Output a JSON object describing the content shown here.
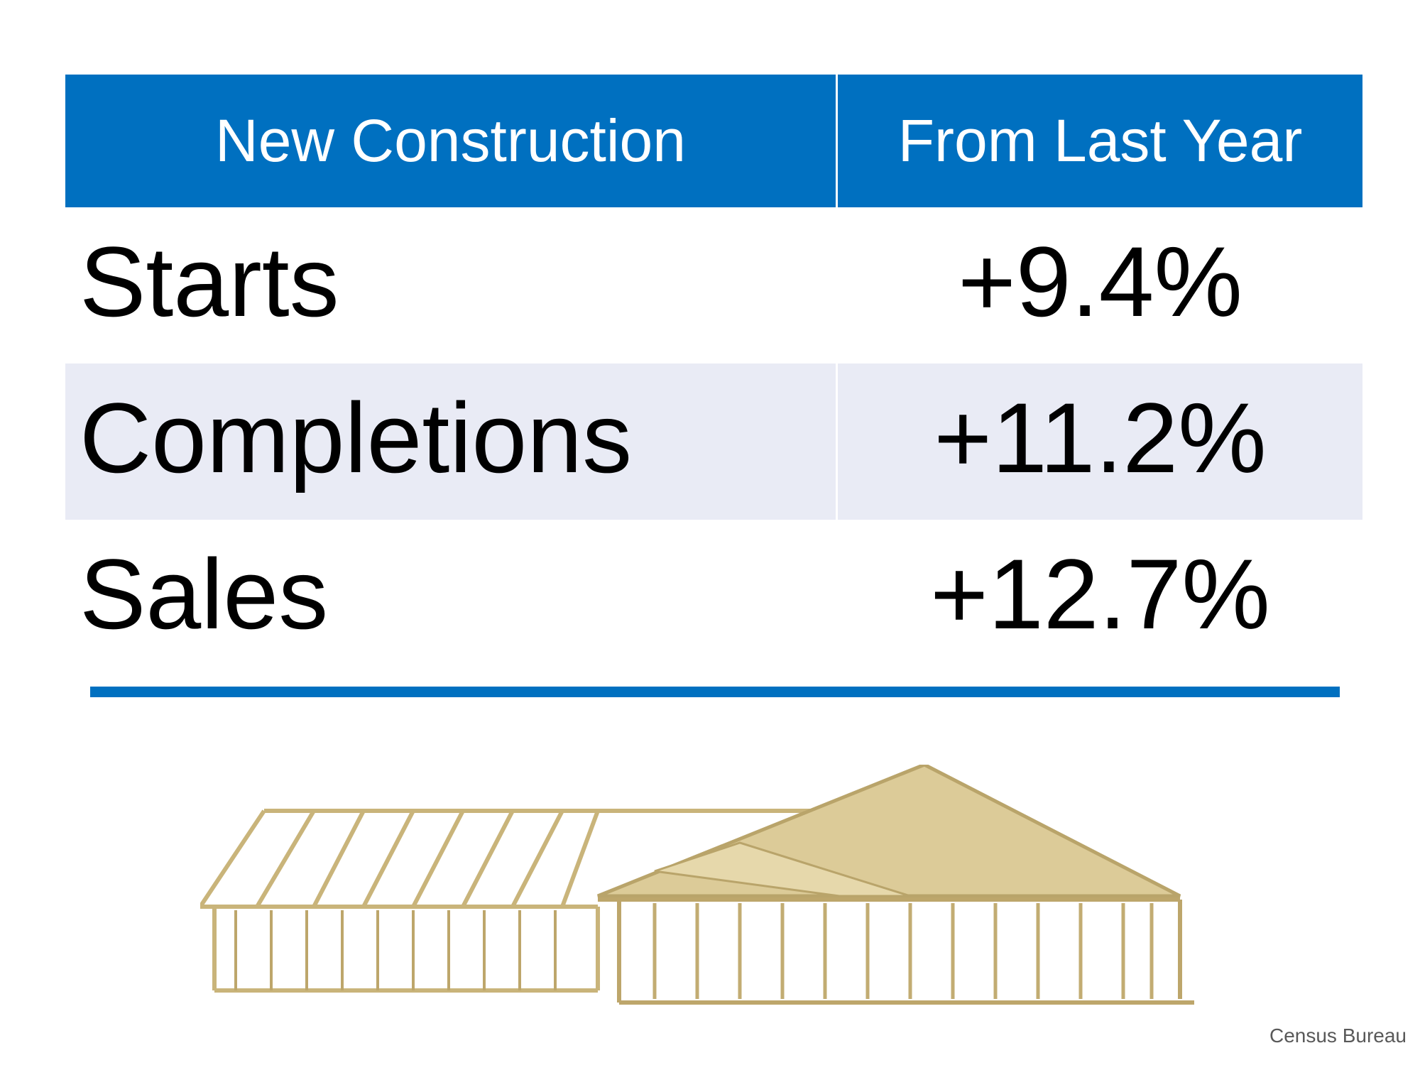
{
  "table": {
    "headers": [
      "New Construction",
      "From Last Year"
    ],
    "rows": [
      {
        "label": "Starts",
        "value": "+9.4%"
      },
      {
        "label": "Completions",
        "value": "+11.2%"
      },
      {
        "label": "Sales",
        "value": "+12.7%"
      }
    ]
  },
  "image": {
    "subject": "house-frame-illustration"
  },
  "source": "Census Bureau",
  "colors": {
    "accent": "#0070c0",
    "shaded_row": "#e9ebf5",
    "wood": "#d8c48e"
  }
}
